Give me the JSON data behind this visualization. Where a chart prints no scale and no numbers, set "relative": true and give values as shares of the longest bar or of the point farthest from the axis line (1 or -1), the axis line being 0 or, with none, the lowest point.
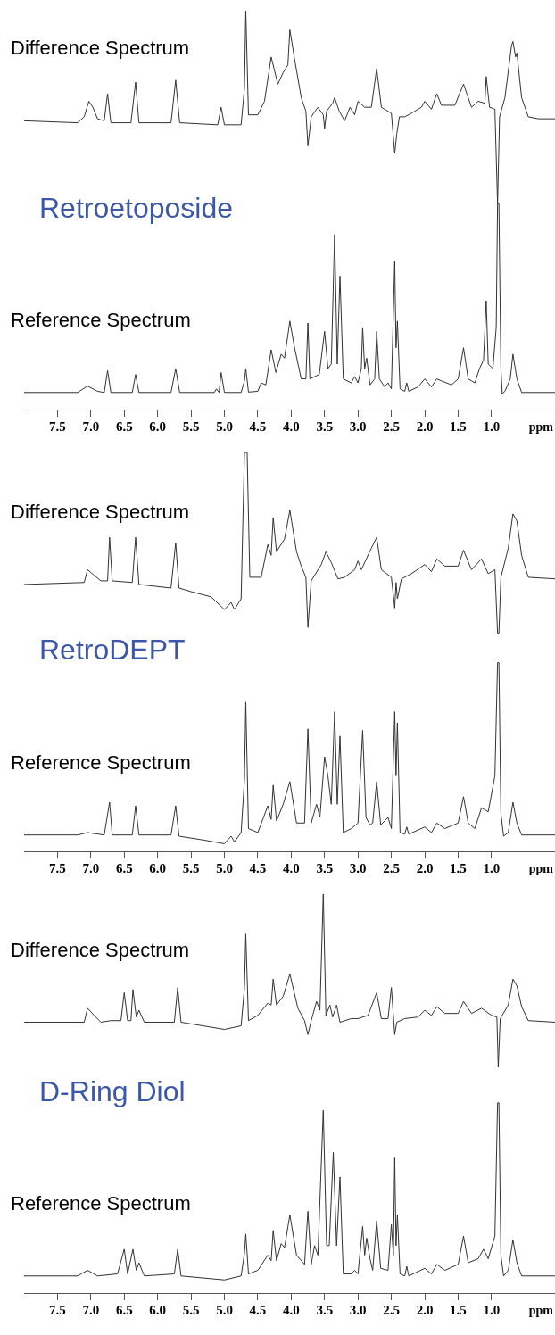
{
  "chart_data": [
    {
      "type": "line",
      "relative": true,
      "title": "Retroetoposide",
      "xlabel": "ppm",
      "xlim": [
        8.0,
        0.05
      ],
      "xticks": [
        {
          "value": 7.5,
          "label": "7.5"
        },
        {
          "value": 7.0,
          "label": "7.0"
        },
        {
          "value": 6.5,
          "label": "6.5"
        },
        {
          "value": 6.0,
          "label": "6.0"
        },
        {
          "value": 5.5,
          "label": "5.5"
        },
        {
          "value": 5.0,
          "label": "5.0"
        },
        {
          "value": 4.5,
          "label": "4.5"
        },
        {
          "value": 4.0,
          "label": "4.0"
        },
        {
          "value": 3.5,
          "label": "3.5"
        },
        {
          "value": 3.0,
          "label": "3.0"
        },
        {
          "value": 2.5,
          "label": "2.5"
        },
        {
          "value": 2.0,
          "label": "2.0"
        },
        {
          "value": 1.5,
          "label": "1.5"
        },
        {
          "value": 1.0,
          "label": "1.0"
        }
      ],
      "series": [
        {
          "name": "Difference Spectrum",
          "color": "#333333",
          "x": [
            8.0,
            7.2,
            7.1,
            7.03,
            6.97,
            6.9,
            6.8,
            6.75,
            6.7,
            6.4,
            6.33,
            6.28,
            5.8,
            5.73,
            5.67,
            5.1,
            5.05,
            5.0,
            4.75,
            4.7,
            4.68,
            4.64,
            4.5,
            4.4,
            4.3,
            4.2,
            4.12,
            4.05,
            4.02,
            3.95,
            3.85,
            3.78,
            3.75,
            3.7,
            3.6,
            3.52,
            3.5,
            3.47,
            3.38,
            3.35,
            3.28,
            3.2,
            3.12,
            3.05,
            3.0,
            2.9,
            2.8,
            2.72,
            2.65,
            2.5,
            2.45,
            2.42,
            2.38,
            2.3,
            2.2,
            2.05,
            2.0,
            1.9,
            1.82,
            1.75,
            1.55,
            1.42,
            1.3,
            1.2,
            1.1,
            1.08,
            1.03,
            0.95,
            0.91,
            0.88,
            0.8,
            0.7,
            0.68,
            0.64,
            0.62,
            0.55,
            0.45,
            0.3,
            0.05
          ],
          "values": [
            0.724,
            0.719,
            0.734,
            0.773,
            0.758,
            0.729,
            0.724,
            0.792,
            0.719,
            0.719,
            0.821,
            0.719,
            0.719,
            0.826,
            0.719,
            0.714,
            0.758,
            0.714,
            0.714,
            0.806,
            1.0,
            0.739,
            0.739,
            0.773,
            0.884,
            0.816,
            0.845,
            0.864,
            0.952,
            0.879,
            0.782,
            0.748,
            0.661,
            0.734,
            0.758,
            0.739,
            0.705,
            0.748,
            0.768,
            0.782,
            0.748,
            0.724,
            0.758,
            0.739,
            0.773,
            0.758,
            0.758,
            0.855,
            0.758,
            0.743,
            0.642,
            0.69,
            0.734,
            0.734,
            0.743,
            0.758,
            0.773,
            0.753,
            0.792,
            0.763,
            0.763,
            0.816,
            0.758,
            0.773,
            0.768,
            0.835,
            0.758,
            0.753,
            0.516,
            0.734,
            0.782,
            0.913,
            0.923,
            0.884,
            0.894,
            0.782,
            0.734,
            0.729,
            0.729
          ]
        },
        {
          "name": "Reference Spectrum",
          "color": "#333333",
          "x": [
            8.0,
            7.2,
            7.05,
            6.9,
            6.8,
            6.75,
            6.7,
            6.38,
            6.33,
            6.28,
            5.8,
            5.73,
            5.67,
            5.15,
            5.12,
            5.08,
            5.05,
            5.0,
            4.75,
            4.7,
            4.68,
            4.64,
            4.5,
            4.45,
            4.38,
            4.3,
            4.23,
            4.15,
            4.1,
            4.02,
            3.95,
            3.85,
            3.78,
            3.75,
            3.72,
            3.58,
            3.5,
            3.45,
            3.4,
            3.35,
            3.31,
            3.27,
            3.22,
            3.1,
            3.05,
            3.0,
            2.95,
            2.93,
            2.9,
            2.87,
            2.82,
            2.75,
            2.72,
            2.68,
            2.6,
            2.55,
            2.5,
            2.45,
            2.43,
            2.41,
            2.37,
            2.3,
            2.27,
            2.24,
            2.1,
            2.0,
            1.9,
            1.82,
            1.75,
            1.6,
            1.5,
            1.42,
            1.35,
            1.25,
            1.18,
            1.12,
            1.08,
            1.05,
            0.98,
            0.93,
            0.91,
            0.89,
            0.86,
            0.84,
            0.8,
            0.72,
            0.68,
            0.62,
            0.55,
            0.05
          ],
          "values": [
            0.043,
            0.043,
            0.059,
            0.046,
            0.043,
            0.098,
            0.043,
            0.043,
            0.088,
            0.043,
            0.043,
            0.103,
            0.043,
            0.043,
            0.052,
            0.043,
            0.093,
            0.043,
            0.043,
            0.072,
            0.103,
            0.044,
            0.046,
            0.067,
            0.062,
            0.15,
            0.093,
            0.139,
            0.129,
            0.222,
            0.155,
            0.077,
            0.077,
            0.217,
            0.077,
            0.088,
            0.196,
            0.103,
            0.114,
            0.439,
            0.114,
            0.335,
            0.077,
            0.067,
            0.083,
            0.067,
            0.103,
            0.206,
            0.103,
            0.129,
            0.062,
            0.077,
            0.196,
            0.077,
            0.057,
            0.067,
            0.052,
            0.372,
            0.155,
            0.222,
            0.052,
            0.046,
            0.067,
            0.046,
            0.057,
            0.077,
            0.057,
            0.077,
            0.072,
            0.062,
            0.077,
            0.155,
            0.077,
            0.067,
            0.103,
            0.124,
            0.273,
            0.114,
            0.103,
            0.206,
            0.516,
            0.516,
            0.103,
            0.04,
            0.046,
            0.077,
            0.139,
            0.077,
            0.043,
            0.043
          ]
        }
      ]
    },
    {
      "type": "line",
      "relative": true,
      "title": "RetroDEPT",
      "xlabel": "ppm",
      "xlim": [
        8.0,
        0.05
      ],
      "xticks": [
        {
          "value": 7.5,
          "label": "7.5"
        },
        {
          "value": 7.0,
          "label": "7.0"
        },
        {
          "value": 6.5,
          "label": "6.5"
        },
        {
          "value": 6.0,
          "label": "6.0"
        },
        {
          "value": 5.5,
          "label": "5.5"
        },
        {
          "value": 5.0,
          "label": "5.0"
        },
        {
          "value": 4.5,
          "label": "4.5"
        },
        {
          "value": 4.0,
          "label": "4.0"
        },
        {
          "value": 3.5,
          "label": "3.5"
        },
        {
          "value": 3.0,
          "label": "3.0"
        },
        {
          "value": 2.5,
          "label": "2.5"
        },
        {
          "value": 2.0,
          "label": "2.0"
        },
        {
          "value": 1.5,
          "label": "1.5"
        },
        {
          "value": 1.0,
          "label": "1.0"
        }
      ],
      "series": [
        {
          "name": "Difference Spectrum",
          "color": "#333333",
          "x": [
            8.0,
            7.1,
            7.05,
            6.95,
            6.85,
            6.75,
            6.72,
            6.68,
            6.38,
            6.33,
            6.28,
            5.8,
            5.73,
            5.68,
            5.5,
            5.2,
            5.0,
            4.9,
            4.85,
            4.75,
            4.7,
            4.66,
            4.62,
            4.45,
            4.35,
            4.3,
            4.27,
            4.22,
            4.1,
            4.02,
            3.92,
            3.85,
            3.78,
            3.75,
            3.7,
            3.55,
            3.48,
            3.4,
            3.3,
            3.2,
            3.05,
            3.0,
            2.95,
            2.8,
            2.72,
            2.65,
            2.5,
            2.45,
            2.43,
            2.41,
            2.35,
            2.2,
            2.0,
            1.9,
            1.82,
            1.7,
            1.5,
            1.42,
            1.3,
            1.15,
            1.05,
            0.95,
            0.91,
            0.89,
            0.86,
            0.75,
            0.68,
            0.62,
            0.55,
            0.45,
            0.05
          ],
          "values": [
            0.669,
            0.674,
            0.706,
            0.692,
            0.678,
            0.678,
            0.787,
            0.678,
            0.674,
            0.787,
            0.669,
            0.66,
            0.774,
            0.66,
            0.651,
            0.638,
            0.606,
            0.624,
            0.606,
            0.633,
            1.0,
            1.0,
            0.687,
            0.687,
            0.769,
            0.742,
            0.837,
            0.751,
            0.783,
            0.855,
            0.751,
            0.715,
            0.687,
            0.561,
            0.678,
            0.719,
            0.751,
            0.724,
            0.683,
            0.687,
            0.706,
            0.728,
            0.706,
            0.76,
            0.787,
            0.706,
            0.687,
            0.61,
            0.674,
            0.633,
            0.683,
            0.696,
            0.719,
            0.701,
            0.733,
            0.715,
            0.715,
            0.755,
            0.706,
            0.733,
            0.696,
            0.706,
            0.547,
            0.547,
            0.687,
            0.76,
            0.846,
            0.828,
            0.742,
            0.687,
            0.683
          ]
        },
        {
          "name": "Reference Spectrum",
          "color": "#333333",
          "x": [
            8.0,
            7.2,
            7.05,
            6.8,
            6.72,
            6.68,
            6.38,
            6.33,
            6.28,
            5.8,
            5.73,
            5.68,
            5.3,
            5.0,
            4.9,
            4.85,
            4.75,
            4.7,
            4.68,
            4.64,
            4.5,
            4.35,
            4.3,
            4.27,
            4.22,
            4.12,
            4.02,
            3.92,
            3.8,
            3.75,
            3.7,
            3.62,
            3.57,
            3.5,
            3.45,
            3.4,
            3.35,
            3.31,
            3.27,
            3.22,
            3.1,
            3.0,
            2.93,
            2.88,
            2.82,
            2.78,
            2.72,
            2.66,
            2.55,
            2.5,
            2.45,
            2.43,
            2.41,
            2.37,
            2.3,
            2.27,
            2.24,
            2.0,
            1.9,
            1.82,
            1.7,
            1.5,
            1.42,
            1.35,
            1.25,
            1.15,
            1.05,
            0.95,
            0.91,
            0.89,
            0.86,
            0.82,
            0.75,
            0.68,
            0.62,
            0.55,
            0.05
          ],
          "values": [
            0.041,
            0.041,
            0.047,
            0.041,
            0.123,
            0.041,
            0.041,
            0.114,
            0.041,
            0.041,
            0.114,
            0.038,
            0.028,
            0.019,
            0.038,
            0.024,
            0.047,
            0.18,
            0.374,
            0.057,
            0.047,
            0.114,
            0.08,
            0.166,
            0.076,
            0.118,
            0.175,
            0.071,
            0.071,
            0.307,
            0.071,
            0.118,
            0.085,
            0.237,
            0.189,
            0.118,
            0.35,
            0.118,
            0.289,
            0.047,
            0.057,
            0.071,
            0.303,
            0.085,
            0.066,
            0.071,
            0.175,
            0.066,
            0.085,
            0.057,
            0.35,
            0.189,
            0.322,
            0.047,
            0.043,
            0.061,
            0.043,
            0.061,
            0.047,
            0.071,
            0.057,
            0.071,
            0.137,
            0.071,
            0.057,
            0.109,
            0.099,
            0.189,
            0.473,
            0.473,
            0.095,
            0.038,
            0.047,
            0.123,
            0.071,
            0.041,
            0.041
          ]
        }
      ]
    },
    {
      "type": "line",
      "relative": true,
      "title": "D-Ring Diol",
      "xlabel": "ppm",
      "xlim": [
        8.0,
        0.05
      ],
      "xticks": [
        {
          "value": 7.5,
          "label": "7.5"
        },
        {
          "value": 7.0,
          "label": "7.0"
        },
        {
          "value": 6.5,
          "label": "6.5"
        },
        {
          "value": 6.0,
          "label": "6.0"
        },
        {
          "value": 5.5,
          "label": "5.5"
        },
        {
          "value": 5.0,
          "label": "5.0"
        },
        {
          "value": 4.5,
          "label": "4.5"
        },
        {
          "value": 4.0,
          "label": "4.0"
        },
        {
          "value": 3.5,
          "label": "3.5"
        },
        {
          "value": 3.0,
          "label": "3.0"
        },
        {
          "value": 2.5,
          "label": "2.5"
        },
        {
          "value": 2.0,
          "label": "2.0"
        },
        {
          "value": 1.5,
          "label": "1.5"
        },
        {
          "value": 1.0,
          "label": "1.0"
        }
      ],
      "series": [
        {
          "name": "Difference Spectrum",
          "color": "#333333",
          "x": [
            8.0,
            7.1,
            7.05,
            6.95,
            6.85,
            6.7,
            6.55,
            6.5,
            6.45,
            6.4,
            6.37,
            6.32,
            6.28,
            6.2,
            5.75,
            5.7,
            5.65,
            5.0,
            4.75,
            4.7,
            4.68,
            4.64,
            4.5,
            4.35,
            4.3,
            4.27,
            4.22,
            4.12,
            4.02,
            3.9,
            3.8,
            3.75,
            3.7,
            3.62,
            3.57,
            3.52,
            3.48,
            3.42,
            3.38,
            3.32,
            3.27,
            3.1,
            3.0,
            2.85,
            2.72,
            2.65,
            2.55,
            2.5,
            2.45,
            2.42,
            2.3,
            2.1,
            2.0,
            1.9,
            1.82,
            1.7,
            1.5,
            1.42,
            1.3,
            1.15,
            1.0,
            0.92,
            0.9,
            0.87,
            0.75,
            0.68,
            0.62,
            0.55,
            0.45,
            0.05
          ],
          "values": [
            0.679,
            0.679,
            0.714,
            0.696,
            0.679,
            0.683,
            0.683,
            0.753,
            0.683,
            0.683,
            0.761,
            0.692,
            0.709,
            0.679,
            0.679,
            0.766,
            0.679,
            0.661,
            0.67,
            0.766,
            0.9,
            0.683,
            0.696,
            0.727,
            0.722,
            0.787,
            0.722,
            0.744,
            0.8,
            0.714,
            0.683,
            0.648,
            0.683,
            0.731,
            0.709,
            1.0,
            0.696,
            0.722,
            0.692,
            0.722,
            0.679,
            0.688,
            0.688,
            0.696,
            0.753,
            0.688,
            0.688,
            0.766,
            0.648,
            0.679,
            0.688,
            0.692,
            0.709,
            0.696,
            0.718,
            0.701,
            0.701,
            0.731,
            0.701,
            0.714,
            0.696,
            0.692,
            0.566,
            0.688,
            0.722,
            0.787,
            0.77,
            0.718,
            0.683,
            0.679
          ]
        },
        {
          "name": "Reference Spectrum",
          "color": "#333333",
          "x": [
            8.0,
            7.2,
            7.05,
            6.9,
            6.6,
            6.5,
            6.45,
            6.37,
            6.32,
            6.28,
            6.2,
            5.75,
            5.7,
            5.65,
            5.0,
            4.75,
            4.7,
            4.68,
            4.64,
            4.5,
            4.35,
            4.3,
            4.27,
            4.22,
            4.15,
            4.1,
            4.02,
            3.92,
            3.8,
            3.75,
            3.7,
            3.65,
            3.6,
            3.52,
            3.47,
            3.43,
            3.37,
            3.32,
            3.27,
            3.22,
            3.1,
            3.05,
            3.0,
            2.93,
            2.9,
            2.87,
            2.82,
            2.78,
            2.72,
            2.66,
            2.55,
            2.5,
            2.47,
            2.45,
            2.43,
            2.41,
            2.37,
            2.3,
            2.27,
            2.24,
            2.0,
            1.9,
            1.82,
            1.7,
            1.5,
            1.42,
            1.35,
            1.2,
            1.12,
            1.05,
            0.95,
            0.91,
            0.89,
            0.86,
            0.82,
            0.75,
            0.68,
            0.62,
            0.55,
            0.05
          ],
          "values": [
            0.043,
            0.043,
            0.057,
            0.043,
            0.048,
            0.11,
            0.048,
            0.11,
            0.057,
            0.076,
            0.043,
            0.048,
            0.11,
            0.043,
            0.033,
            0.043,
            0.1,
            0.148,
            0.048,
            0.057,
            0.095,
            0.081,
            0.157,
            0.081,
            0.124,
            0.114,
            0.196,
            0.095,
            0.072,
            0.205,
            0.072,
            0.119,
            0.095,
            0.458,
            0.119,
            0.119,
            0.353,
            0.119,
            0.291,
            0.048,
            0.048,
            0.057,
            0.048,
            0.167,
            0.095,
            0.138,
            0.086,
            0.057,
            0.181,
            0.062,
            0.057,
            0.172,
            0.095,
            0.339,
            0.119,
            0.196,
            0.048,
            0.043,
            0.067,
            0.043,
            0.062,
            0.048,
            0.072,
            0.057,
            0.072,
            0.143,
            0.076,
            0.086,
            0.11,
            0.086,
            0.143,
            0.477,
            0.477,
            0.095,
            0.043,
            0.057,
            0.134,
            0.076,
            0.043,
            0.043
          ]
        }
      ]
    }
  ]
}
